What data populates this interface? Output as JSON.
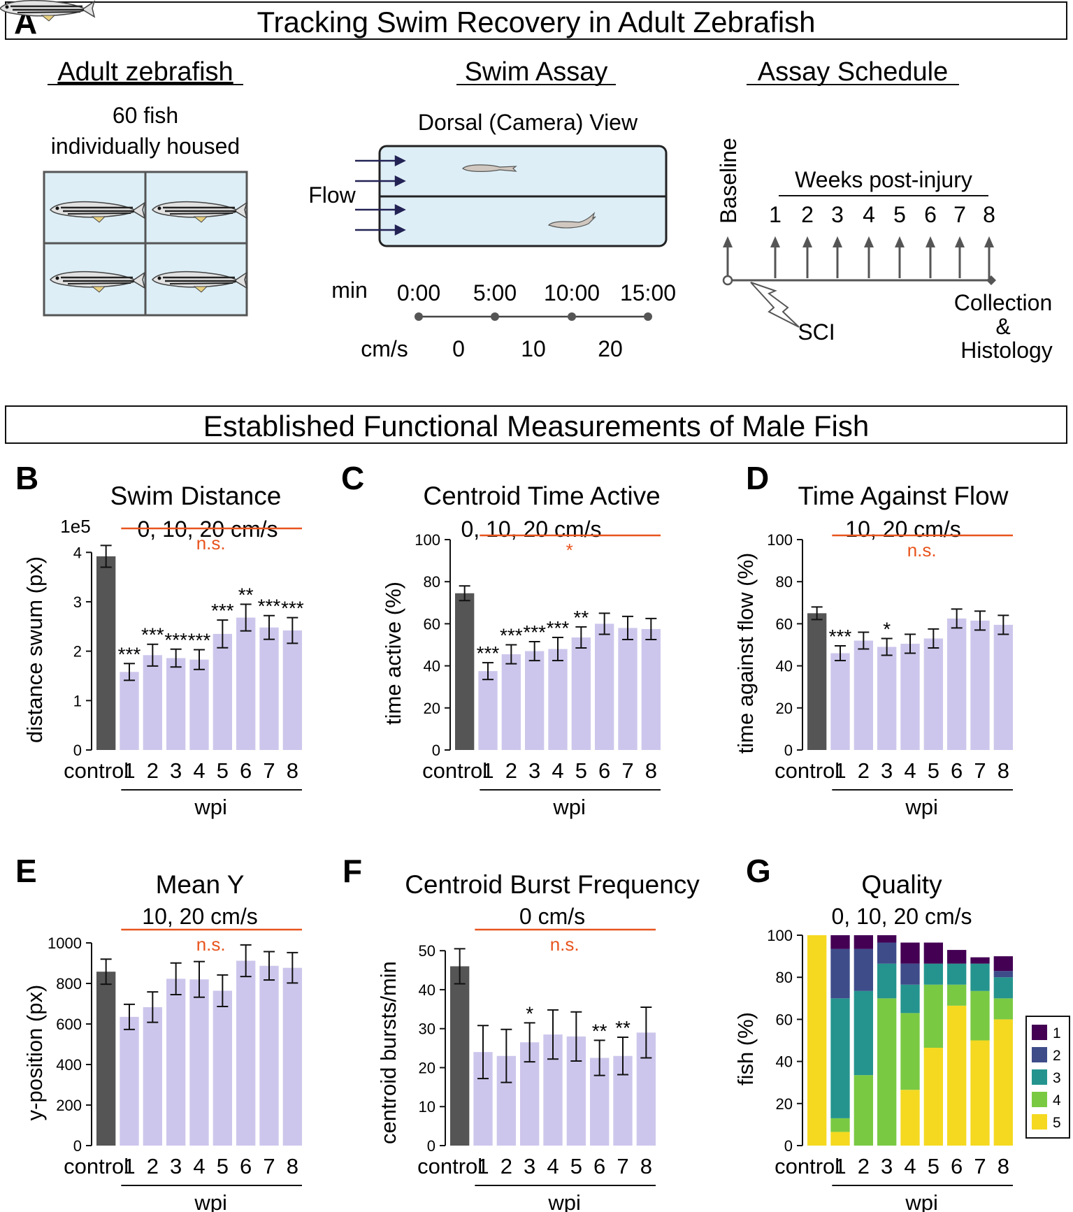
{
  "panelA": {
    "letter": "A",
    "title": "Tracking Swim Recovery in Adult Zebrafish",
    "col1": {
      "heading": "Adult zebrafish",
      "line1": "60 fish",
      "line2": "individually housed"
    },
    "col2": {
      "heading": "Swim Assay",
      "view": "Dorsal (Camera) View",
      "flow": "Flow",
      "min_label": "min",
      "times": [
        "0:00",
        "5:00",
        "10:00",
        "15:00"
      ],
      "speed_label": "cm/s",
      "speeds": [
        "0",
        "10",
        "20"
      ]
    },
    "col3": {
      "heading": "Assay Schedule",
      "baseline": "Baseline",
      "weeks_label": "Weeks post-injury",
      "weeks": [
        "1",
        "2",
        "3",
        "4",
        "5",
        "6",
        "7",
        "8"
      ],
      "sci": "SCI",
      "collection": [
        "Collection",
        "&",
        "Histology"
      ]
    }
  },
  "section2": {
    "title": "Established Functional Measurements of Male Fish"
  },
  "colors": {
    "control": "#555555",
    "wpi": "#cdc6ec",
    "sig": "#e8541e",
    "quality": [
      "#440154",
      "#3e4c8a",
      "#25948e",
      "#7ac943",
      "#f5d921"
    ],
    "tank": "#ddeef6",
    "arrow": "#222255"
  },
  "chart_data": [
    {
      "id": "B",
      "type": "bar",
      "letter": "B",
      "title": "Swim Distance",
      "subtitle": "0, 10, 20 cm/s",
      "ylabel": "distance swum (px)",
      "ylim": [
        0,
        4.4
      ],
      "yticks": [
        "0",
        "1",
        "2",
        "3",
        "4"
      ],
      "ytick_values": [
        0,
        1,
        2,
        3,
        4
      ],
      "yscale_note": "1e5",
      "categories": [
        "control",
        "1",
        "2",
        "3",
        "4",
        "5",
        "6",
        "7",
        "8"
      ],
      "xgroup_label": "wpi",
      "values": [
        3.92,
        1.58,
        1.92,
        1.86,
        1.83,
        2.35,
        2.68,
        2.48,
        2.42
      ],
      "errors": [
        0.22,
        0.17,
        0.22,
        0.18,
        0.2,
        0.28,
        0.27,
        0.24,
        0.26
      ],
      "stars": [
        "",
        "***",
        "***",
        "***",
        "***",
        "***",
        "**",
        "***",
        "***"
      ],
      "bracket_label": "n.s."
    },
    {
      "id": "C",
      "type": "bar",
      "letter": "C",
      "title": "Centroid Time Active",
      "subtitle": "0, 10, 20 cm/s",
      "ylabel": "time active (%)",
      "ylim": [
        0,
        100
      ],
      "yticks": [
        "0",
        "20",
        "40",
        "60",
        "80",
        "100"
      ],
      "ytick_values": [
        0,
        20,
        40,
        60,
        80,
        100
      ],
      "categories": [
        "control",
        "1",
        "2",
        "3",
        "4",
        "5",
        "6",
        "7",
        "8"
      ],
      "xgroup_label": "wpi",
      "values": [
        74.5,
        37.5,
        45.5,
        47,
        48,
        53.5,
        60,
        58,
        57.5
      ],
      "errors": [
        3.5,
        4,
        4.5,
        4.5,
        5.5,
        5,
        5,
        5.5,
        5
      ],
      "stars": [
        "",
        "***",
        "***",
        "***",
        "***",
        "**",
        "",
        "",
        ""
      ],
      "bracket_label": "*"
    },
    {
      "id": "D",
      "type": "bar",
      "letter": "D",
      "title": "Time Against Flow",
      "subtitle": "10, 20 cm/s",
      "ylabel": "time against flow (%)",
      "ylim": [
        0,
        100
      ],
      "yticks": [
        "0",
        "20",
        "40",
        "60",
        "80",
        "100"
      ],
      "ytick_values": [
        0,
        20,
        40,
        60,
        80,
        100
      ],
      "categories": [
        "control",
        "1",
        "2",
        "3",
        "4",
        "5",
        "6",
        "7",
        "8"
      ],
      "xgroup_label": "wpi",
      "values": [
        65,
        46,
        52,
        49,
        50.5,
        53,
        62.5,
        61.5,
        59.5
      ],
      "errors": [
        3,
        3.5,
        4,
        4,
        4.5,
        4.5,
        4.5,
        4.5,
        4.5
      ],
      "stars": [
        "",
        "***",
        "",
        "*",
        "",
        "",
        "",
        "",
        ""
      ],
      "bracket_label": "n.s."
    },
    {
      "id": "E",
      "type": "bar",
      "letter": "E",
      "title": "Mean Y",
      "subtitle": "10, 20 cm/s",
      "ylabel": "y-position (px)",
      "ylim": [
        0,
        1000
      ],
      "yticks": [
        "0",
        "200",
        "400",
        "600",
        "800",
        "1000"
      ],
      "ytick_values": [
        0,
        200,
        400,
        600,
        800,
        1000
      ],
      "categories": [
        "control",
        "1",
        "2",
        "3",
        "4",
        "5",
        "6",
        "7",
        "8"
      ],
      "xgroup_label": "wpi",
      "values": [
        858,
        635,
        683,
        823,
        820,
        764,
        912,
        887,
        877
      ],
      "errors": [
        62,
        62,
        75,
        78,
        88,
        78,
        78,
        70,
        75
      ],
      "stars": [
        "",
        "",
        "",
        "",
        "",
        "",
        "",
        "",
        ""
      ],
      "bracket_label": "n.s."
    },
    {
      "id": "F",
      "type": "bar",
      "letter": "F",
      "title": "Centroid Burst Frequency",
      "subtitle": "0 cm/s",
      "ylabel": "centroid bursts/min",
      "ylim": [
        0,
        52
      ],
      "yticks": [
        "0",
        "10",
        "20",
        "30",
        "40",
        "50"
      ],
      "ytick_values": [
        0,
        10,
        20,
        30,
        40,
        50
      ],
      "categories": [
        "control",
        "1",
        "2",
        "3",
        "4",
        "5",
        "6",
        "7",
        "8"
      ],
      "xgroup_label": "wpi",
      "values": [
        46,
        24,
        23,
        26.5,
        28.5,
        28,
        22.5,
        23,
        29
      ],
      "errors": [
        4.5,
        6.8,
        6.8,
        5,
        6.3,
        6.3,
        4.5,
        4.8,
        6.5
      ],
      "stars": [
        "",
        "",
        "",
        "*",
        "",
        "",
        "**",
        "**",
        ""
      ],
      "bracket_label": "n.s."
    },
    {
      "id": "G",
      "type": "stacked-bar",
      "letter": "G",
      "title": "Quality",
      "subtitle": "0, 10, 20 cm/s",
      "ylabel": "fish (%)",
      "ylim": [
        0,
        100
      ],
      "yticks": [
        "0",
        "20",
        "40",
        "60",
        "80",
        "100"
      ],
      "ytick_values": [
        0,
        20,
        40,
        60,
        80,
        100
      ],
      "categories": [
        "control",
        "1",
        "2",
        "3",
        "4",
        "5",
        "6",
        "7",
        "8"
      ],
      "xgroup_label": "wpi",
      "legend": [
        "1",
        "2",
        "3",
        "4",
        "5"
      ],
      "series": [
        {
          "name": "5",
          "values": [
            100,
            6.5,
            0,
            0,
            26.5,
            46.5,
            66.5,
            50,
            60
          ]
        },
        {
          "name": "4",
          "values": [
            0,
            6.5,
            33.5,
            70,
            36.5,
            30,
            10,
            23.5,
            10
          ]
        },
        {
          "name": "3",
          "values": [
            0,
            57,
            40,
            16.5,
            13.5,
            10,
            10,
            13,
            10
          ]
        },
        {
          "name": "2",
          "values": [
            0,
            23.5,
            20,
            10,
            10,
            0,
            0,
            0,
            3
          ]
        },
        {
          "name": "1",
          "values": [
            0,
            6.5,
            6.5,
            3.5,
            10,
            10,
            6.5,
            3,
            7
          ]
        }
      ]
    }
  ]
}
